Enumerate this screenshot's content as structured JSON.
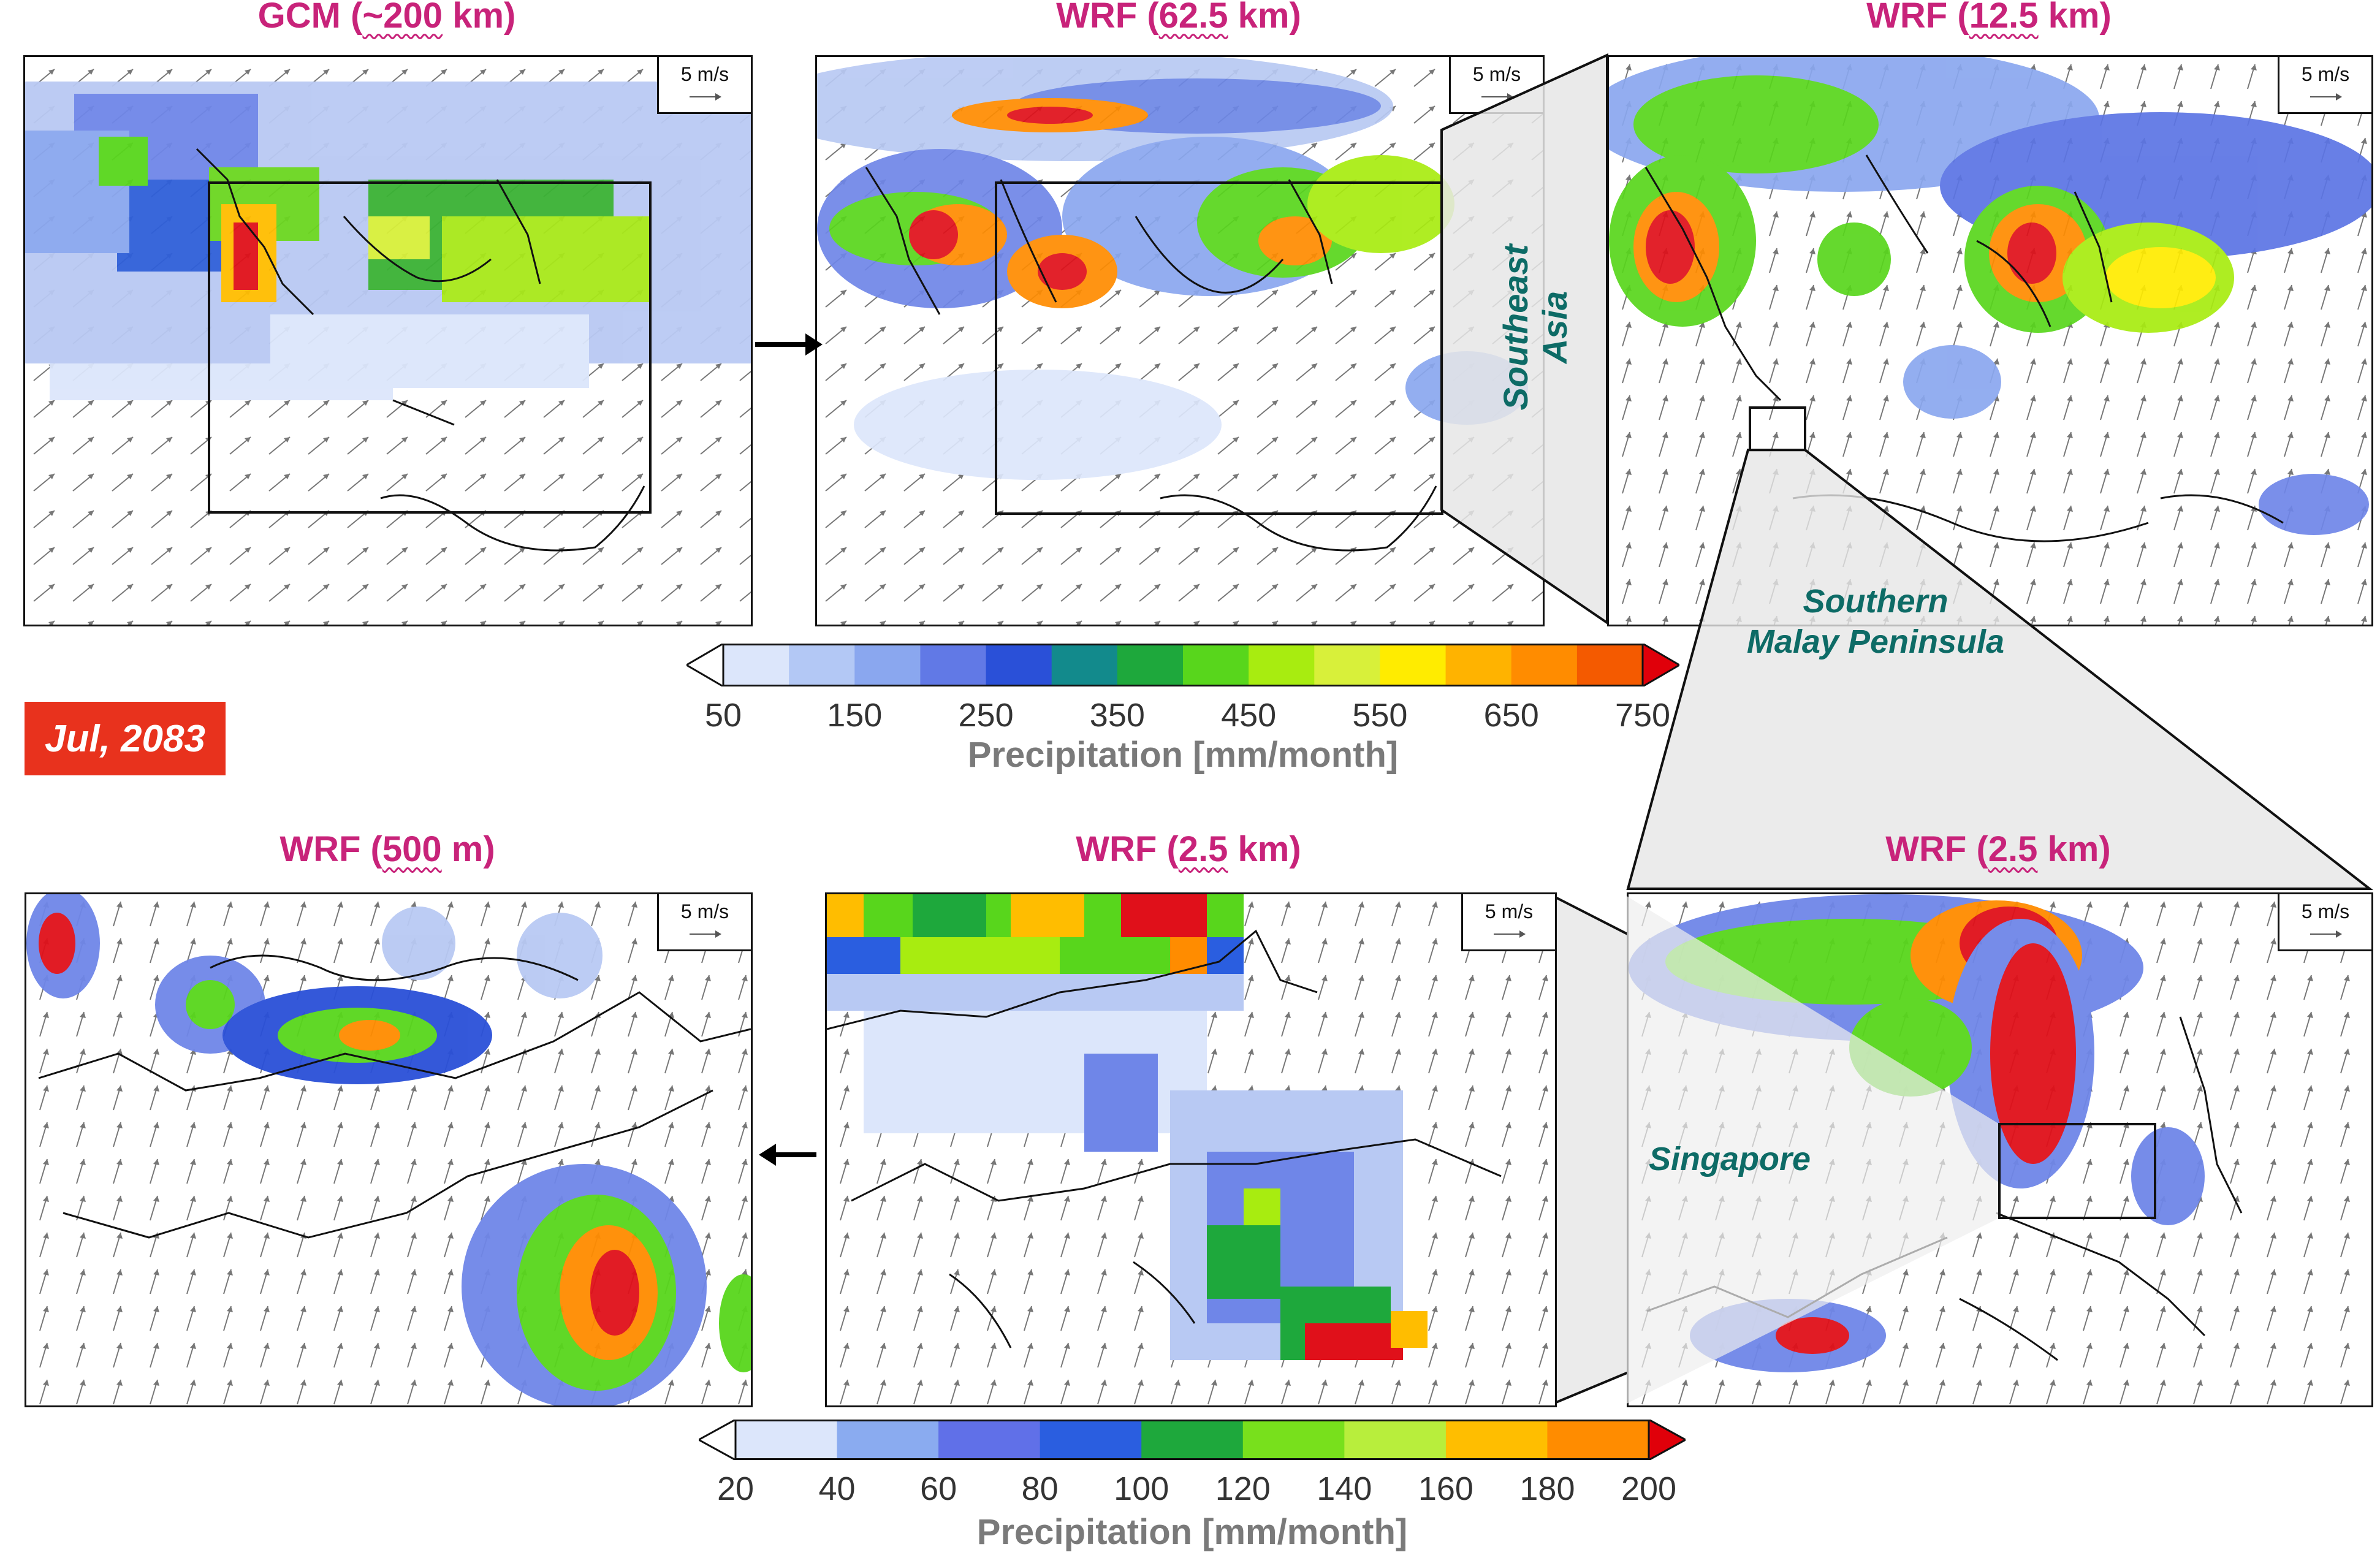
{
  "panels": [
    {
      "id": "gcm",
      "model": "GCM",
      "prefix": "(",
      "res": "~200",
      "suffix": " km)",
      "wind": "5 m/s"
    },
    {
      "id": "wrf62",
      "model": "WRF",
      "prefix": "(",
      "res": "62.5",
      "suffix": " km)",
      "wind": "5 m/s"
    },
    {
      "id": "wrf12",
      "model": "WRF",
      "prefix": "(",
      "res": "12.5",
      "suffix": " km)",
      "wind": "5 m/s"
    },
    {
      "id": "wrf25r",
      "model": "WRF",
      "prefix": "(",
      "res": "2.5",
      "suffix": " km)",
      "wind": "5 m/s"
    },
    {
      "id": "wrf25c",
      "model": "WRF",
      "prefix": "(",
      "res": "2.5",
      "suffix": " km)",
      "wind": "5 m/s"
    },
    {
      "id": "wrf500",
      "model": "WRF",
      "prefix": "(",
      "res": "500",
      "suffix": " m)",
      "wind": "5 m/s"
    }
  ],
  "regions": {
    "southeast_asia_1": "Southeast",
    "southeast_asia_2": "Asia",
    "malay_1": "Southern",
    "malay_2": "Malay Peninsula",
    "singapore": "Singapore"
  },
  "date_label": "Jul, 2083",
  "colorbars": [
    {
      "id": "monthly",
      "title": "Precipitation [mm/month]",
      "ticks": [
        "50",
        "150",
        "250",
        "350",
        "450",
        "550",
        "650",
        "750"
      ],
      "colors": [
        "#dce6fb",
        "#b3c8f5",
        "#8aa7ef",
        "#6179e6",
        "#2a50d8",
        "#128a8c",
        "#1ea83c",
        "#58d61c",
        "#a8ec10",
        "#d8f03a",
        "#ffec00",
        "#ffb300",
        "#ff8c00",
        "#f45a00"
      ],
      "under": "#ffffff",
      "over": "#e0000a"
    },
    {
      "id": "fine",
      "title": "Precipitation [mm/month]",
      "ticks": [
        "20",
        "40",
        "60",
        "80",
        "100",
        "120",
        "140",
        "160",
        "180",
        "200"
      ],
      "colors": [
        "#dce6fb",
        "#8aabf0",
        "#6070e8",
        "#2a5ee0",
        "#1ea83c",
        "#78e01c",
        "#b8ee3c",
        "#ffbe00",
        "#ff8c00"
      ],
      "under": "#ffffff",
      "over": "#e0000a"
    }
  ]
}
